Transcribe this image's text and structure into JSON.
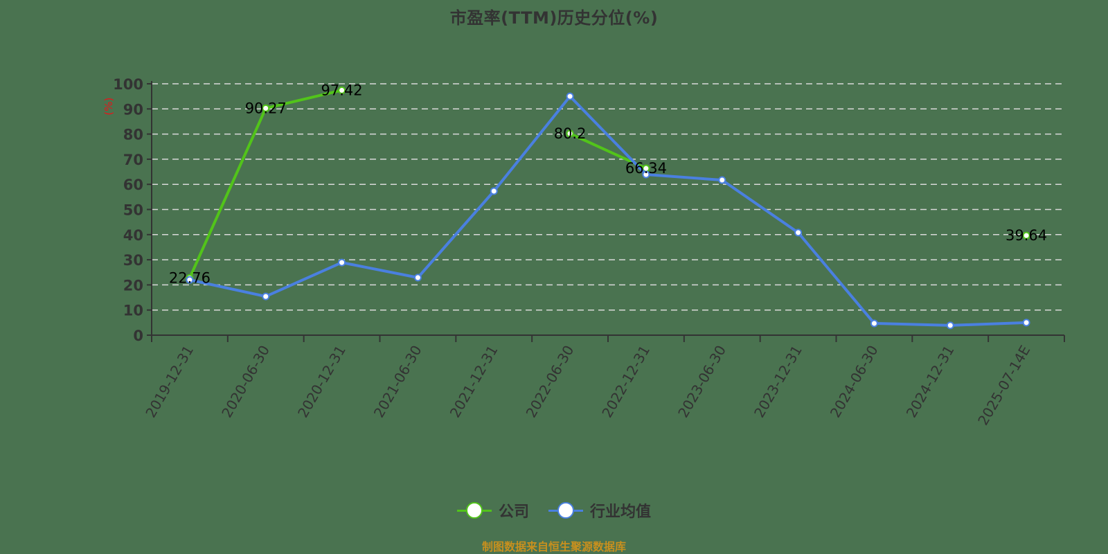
{
  "title": "市盈率(TTM)历史分位(%)",
  "footer": {
    "text": "制图数据来自恒生聚源数据库",
    "color": "#c8901e"
  },
  "colors": {
    "background": "#4a7350",
    "company": "#52c41a",
    "industry": "#4a80e0",
    "grid": "#d9d9d9",
    "axis": "#333333"
  },
  "legend": [
    {
      "label": "公司",
      "color": "#52c41a"
    },
    {
      "label": "行业均值",
      "color": "#4a80e0"
    }
  ],
  "chart_data": {
    "type": "line",
    "title": "市盈率(TTM)历史分位(%)",
    "xlabel": "",
    "ylabel": "(%)",
    "ylim": [
      0,
      100
    ],
    "yticks": [
      0,
      10,
      20,
      30,
      40,
      50,
      60,
      70,
      80,
      90,
      100
    ],
    "grid": true,
    "legend_position": "bottom",
    "categories": [
      "2019-12-31",
      "2020-06-30",
      "2020-12-31",
      "2021-06-30",
      "2021-12-31",
      "2022-06-30",
      "2022-12-31",
      "2023-06-30",
      "2023-12-31",
      "2024-06-30",
      "2024-12-31",
      "2025-07-14E"
    ],
    "series": [
      {
        "name": "公司",
        "values": [
          22.76,
          90.27,
          97.42,
          null,
          null,
          80.2,
          66.34,
          null,
          null,
          null,
          null,
          39.64
        ],
        "show_labels": true
      },
      {
        "name": "行业均值",
        "values": [
          22.0,
          15.4,
          28.9,
          22.9,
          57.3,
          95.0,
          63.9,
          61.7,
          40.8,
          4.7,
          3.9,
          5.0
        ],
        "show_labels": false
      }
    ]
  }
}
